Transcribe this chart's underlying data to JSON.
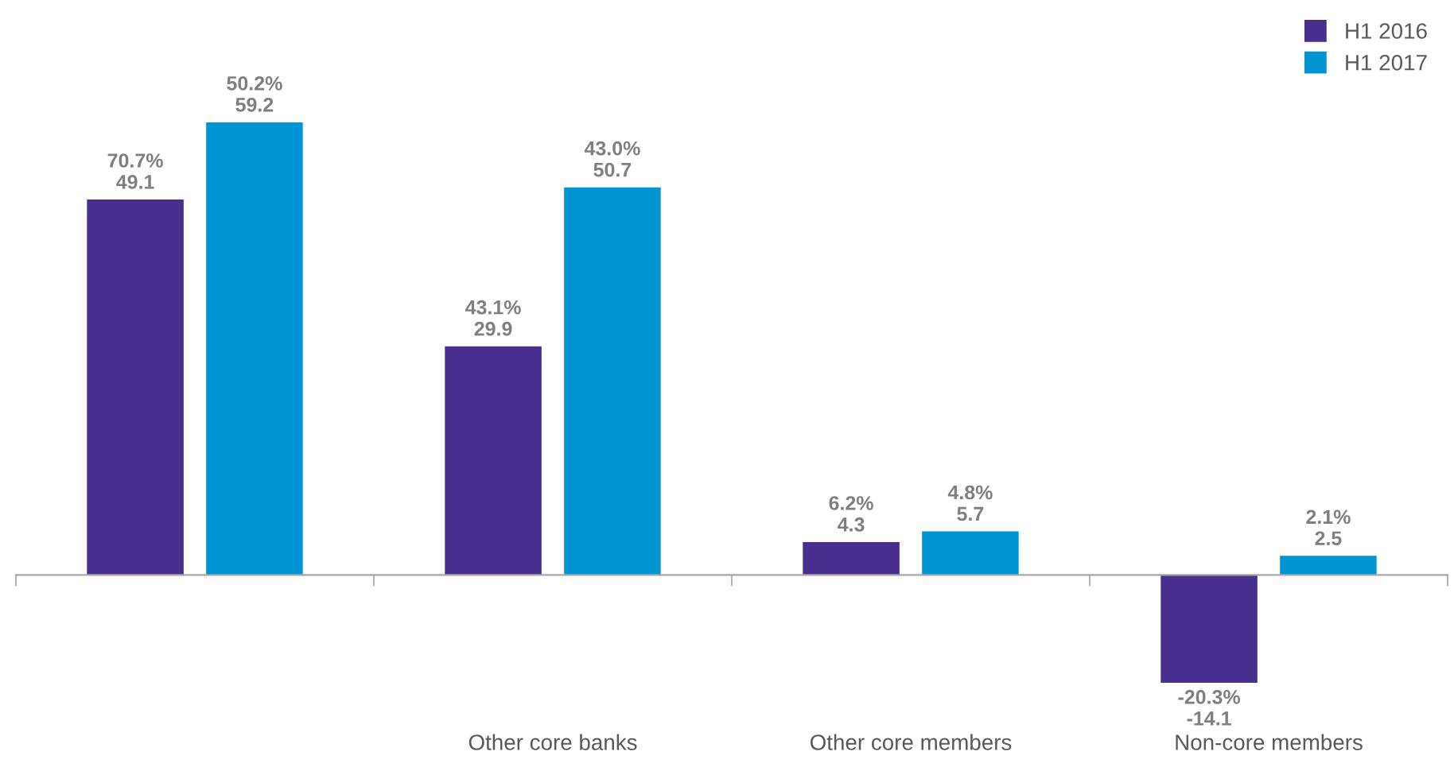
{
  "chart_data": {
    "type": "bar",
    "categories": [
      null,
      "Other core banks",
      "Other core members",
      "Non-core members"
    ],
    "series": [
      {
        "name": "H1 2016",
        "color": "#482f8f",
        "values": [
          49.1,
          29.9,
          4.3,
          -14.1
        ],
        "value_labels": [
          "70.7%\n49.1",
          "43.1%\n29.9",
          "6.2%\n4.3",
          "-20.3%\n-14.1"
        ]
      },
      {
        "name": "H1 2017",
        "color": "#0094d2",
        "values": [
          59.2,
          50.7,
          5.7,
          2.5
        ],
        "value_labels": [
          "50.2%\n59.2",
          "43.0%\n50.7",
          "4.8%\n5.7",
          "2.1%\n2.5"
        ]
      }
    ],
    "legend": "top right",
    "grid": false
  }
}
